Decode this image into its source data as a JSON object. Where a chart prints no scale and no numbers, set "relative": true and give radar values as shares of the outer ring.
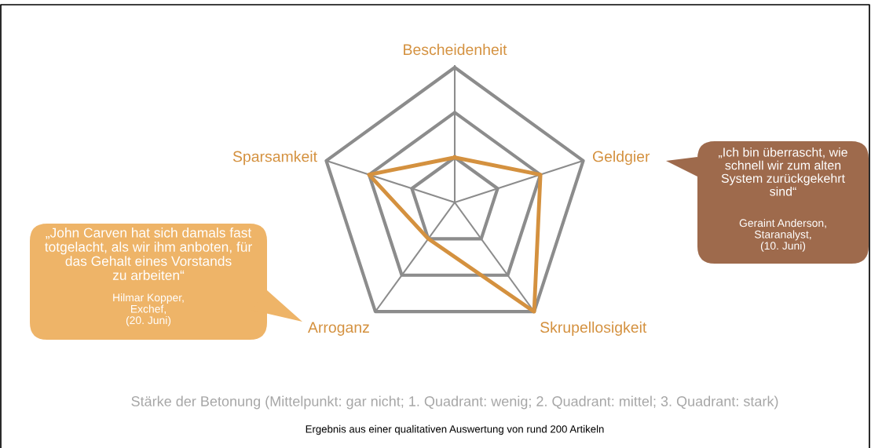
{
  "chart_data": {
    "type": "radar",
    "relative": true,
    "grid": true,
    "categories": [
      "Bescheidenheit",
      "Geldgier",
      "Skrupellosigkeit",
      "Arroganz",
      "Sparsamkeit"
    ],
    "series": [
      {
        "color": "#d4913f",
        "values": [
          0.333,
          0.667,
          1,
          0.333,
          0.667
        ]
      }
    ],
    "annotations": [
      "„Ich bin überrascht, wie\nschnell wir zum alten\nSystem zurückgekehrt\nsind“",
      "Geraint Anderson,\nStaranalyst,\n(10. Juni)",
      "„John Carven hat sich damals fast\ntotgelacht, als wir ihm anboten, für\ndas Gehalt eines Vorstands\nzu arbeiten“",
      "Hilmar Kopper,\nExchef,\n(20. Juni)",
      "Stärke der Betonung (Mittelpunkt: gar nicht; 1. Quadrant: wenig; 2. Quadrant: mittel; 3. Quadrant: stark)",
      "Ergebnis aus einer qualitativen Auswertung von rund 200 Artikeln"
    ]
  }
}
